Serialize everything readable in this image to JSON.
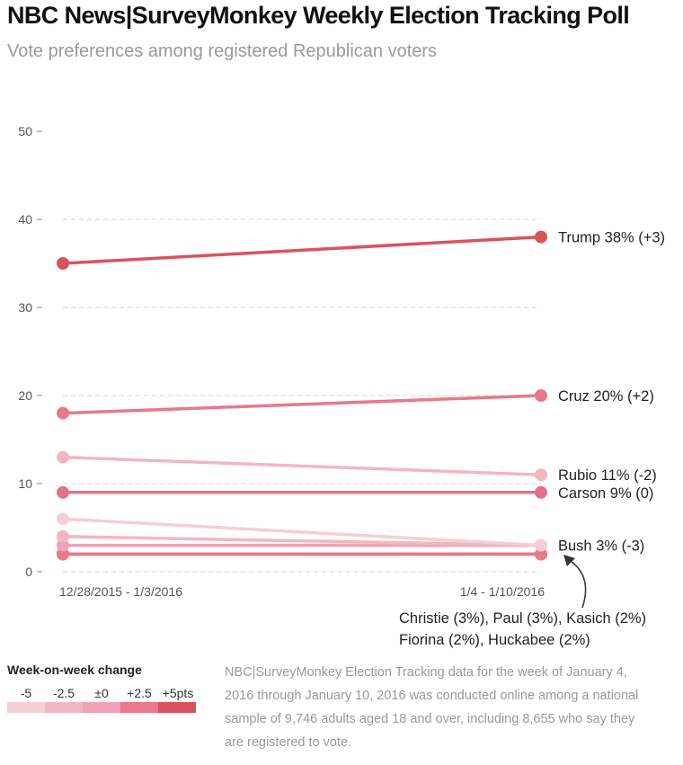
{
  "header": {
    "title": "NBC News|SurveyMonkey Weekly Election Tracking Poll",
    "subtitle": "Vote preferences among registered Republican voters"
  },
  "chart_data": {
    "type": "line",
    "x": [
      "12/28/2015 - 1/3/2016",
      "1/4 - 1/10/2016"
    ],
    "ylim": [
      0,
      50
    ],
    "yticks": [
      0,
      10,
      20,
      30,
      40,
      50
    ],
    "grid": true,
    "series": [
      {
        "name": "Trump",
        "values": [
          35,
          38
        ],
        "label": "Trump 38% (+3)",
        "color": "#d9535f"
      },
      {
        "name": "Cruz",
        "values": [
          18,
          20
        ],
        "label": "Cruz 20% (+2)",
        "color": "#e8788b"
      },
      {
        "name": "Rubio",
        "values": [
          13,
          11
        ],
        "label": "Rubio 11% (-2)",
        "color": "#f2b6c3"
      },
      {
        "name": "Carson",
        "values": [
          9,
          9
        ],
        "label": "Carson 9% (0)",
        "color": "#e1708a"
      },
      {
        "name": "Bush",
        "values": [
          6,
          3
        ],
        "label": "Bush 3% (-3)",
        "color": "#f4cfd6"
      },
      {
        "name": "Christie",
        "values": [
          4,
          3
        ],
        "color": "#f2b6c3"
      },
      {
        "name": "Paul",
        "values": [
          3,
          3
        ],
        "color": "#f0a3b6"
      },
      {
        "name": "Kasich",
        "values": [
          2,
          2
        ],
        "color": "#e8788b"
      },
      {
        "name": "Fiorina",
        "values": [
          2,
          2
        ],
        "color": "#e8788b"
      },
      {
        "name": "Huckabee",
        "values": [
          2,
          2
        ],
        "color": "#e1708a"
      }
    ],
    "annotation": {
      "lines": [
        "Christie (3%), Paul (3%), Kasich (2%)",
        "Fiorina (2%), Huckabee (2%)"
      ]
    }
  },
  "legend": {
    "title": "Week-on-week change",
    "labels": [
      "-5",
      "-2.5",
      "±0",
      "+2.5",
      "+5pts"
    ],
    "colors": [
      "#f4cfd6",
      "#f2b6c3",
      "#f0a3b6",
      "#e8788b",
      "#d9535f"
    ]
  },
  "note": "NBC|SurveyMonkey Election Tracking data for the week of January 4, 2016 through January 10, 2016 was conducted online among a national sample of 9,746 adults aged 18 and over, including 8,655 who say they are registered to vote."
}
